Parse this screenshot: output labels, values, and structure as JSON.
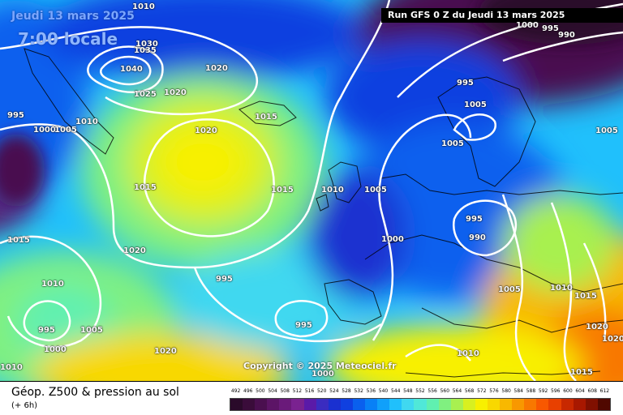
{
  "header": {
    "date": "Jeudi 13 mars 2025",
    "time": "7:00 locale",
    "run": "Run GFS 0 Z du Jeudi 13 mars 2025"
  },
  "copyright": "Copyright © 2025 Meteociel.fr",
  "footer": {
    "title": "Géop. Z500 & pression au sol",
    "subtitle": "(+ 6h)"
  },
  "isobar_labels": [
    "1010",
    "1030",
    "1035",
    "1040",
    "1020",
    "1025",
    "1020",
    "995",
    "1000",
    "1005",
    "1010",
    "1020",
    "1015",
    "1015",
    "1015",
    "1010",
    "1005",
    "1000",
    "1015",
    "1020",
    "995",
    "995",
    "1010",
    "995",
    "1005",
    "1000",
    "1020",
    "1010",
    "1000",
    "990",
    "995",
    "1005",
    "1005",
    "995",
    "1005",
    "1005",
    "990",
    "1010",
    "1015",
    "1020",
    "1020",
    "1010",
    "1015",
    "1000",
    "995"
  ],
  "legend": {
    "values": [
      "492",
      "496",
      "500",
      "504",
      "508",
      "512",
      "516",
      "520",
      "524",
      "528",
      "532",
      "536",
      "540",
      "544",
      "548",
      "552",
      "556",
      "560",
      "564",
      "568",
      "572",
      "576",
      "580",
      "584",
      "588",
      "592",
      "596",
      "600",
      "604",
      "608",
      "612"
    ],
    "colors": [
      "#2a0a2a",
      "#3a0c3a",
      "#4a0f4f",
      "#5c1466",
      "#6a1a7a",
      "#7a2290",
      "#5a1aa8",
      "#3a2cc0",
      "#1a30d0",
      "#1040e0",
      "#0a60ee",
      "#0880f6",
      "#10a0fa",
      "#20c0fc",
      "#40d8f0",
      "#50e8d8",
      "#60f0b0",
      "#80f080",
      "#a8f050",
      "#d8f020",
      "#f8f000",
      "#f8d800",
      "#f8b800",
      "#f89800",
      "#f87800",
      "#f85800",
      "#e84000",
      "#c82800",
      "#a81800",
      "#801000",
      "#500800"
    ]
  }
}
